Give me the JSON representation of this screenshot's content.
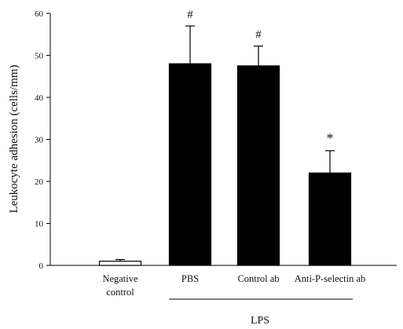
{
  "chart_data": {
    "type": "bar",
    "title": "",
    "xlabel": "",
    "ylabel": "Leukocyte adhesion (cells/mm)",
    "ylim": [
      0,
      60
    ],
    "yticks": [
      0,
      10,
      20,
      30,
      40,
      50,
      60
    ],
    "grid": false,
    "categories": [
      {
        "lines": [
          "Negative",
          "control"
        ]
      },
      {
        "lines": [
          "PBS"
        ]
      },
      {
        "lines": [
          "Control ab"
        ]
      },
      {
        "lines": [
          "Anti-P-selectin ab"
        ]
      }
    ],
    "values": [
      1,
      48,
      47.5,
      22
    ],
    "errors": [
      0.4,
      9,
      4.7,
      5.3
    ],
    "fills": [
      "#ffffff",
      "#000000",
      "#000000",
      "#000000"
    ],
    "annotations": [
      "",
      "#",
      "#",
      "*"
    ],
    "group": {
      "label": "LPS",
      "from_category": 1,
      "to_category": 3
    }
  }
}
